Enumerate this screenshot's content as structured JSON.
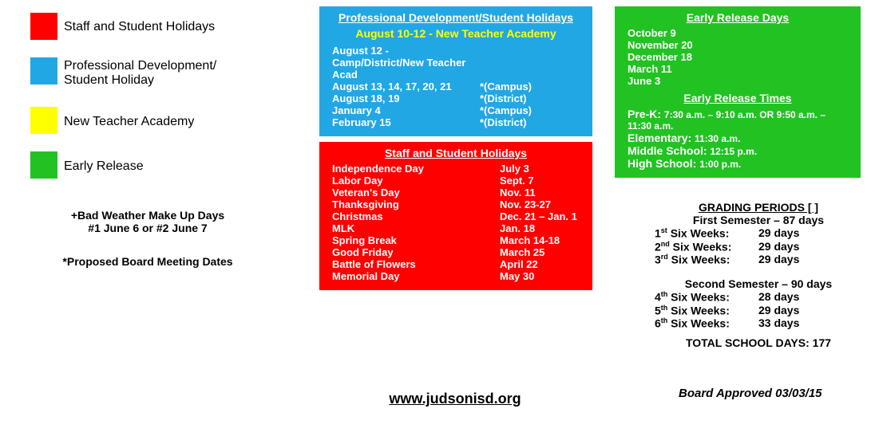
{
  "colors": {
    "red": "#ff0000",
    "blue": "#22a7e5",
    "yellow": "#ffff00",
    "green": "#22c222",
    "white": "#ffffff",
    "black": "#000000",
    "yellowText": "#ffff00"
  },
  "legend": {
    "staffStudent": {
      "label": "Staff and Student Holidays",
      "color": "#ff0000"
    },
    "profDev": {
      "label": "Professional Development/\nStudent Holiday",
      "color": "#22a7e5"
    },
    "newTeacher": {
      "label": "New Teacher Academy",
      "color": "#ffff00"
    },
    "earlyRelease": {
      "label": "Early Release",
      "color": "#22c222"
    }
  },
  "notes": {
    "badWeather1": "+Bad Weather Make Up Days",
    "badWeather2": "#1 June 6  or  #2 June 7",
    "proposed": "*Proposed Board Meeting Dates"
  },
  "profDevBox": {
    "title": "Professional Development/Student Holidays",
    "subtitle": "August 10-12 - New Teacher Academy",
    "bg": "#22a7e5",
    "text": "#ffffff",
    "subtitleColor": "#ffff00",
    "rows": [
      {
        "c1": "August 12  - Camp/District/New Teacher Acad",
        "c2": ""
      },
      {
        "c1": "August 13, 14, 17, 20, 21",
        "c2": "*(Campus)"
      },
      {
        "c1": "August 18, 19",
        "c2": "*(District)"
      },
      {
        "c1": "January 4",
        "c2": "*(Campus)"
      },
      {
        "c1": "February 15",
        "c2": "*(District)"
      }
    ]
  },
  "holidaysBox": {
    "title": "Staff and Student Holidays",
    "bg": "#ff0000",
    "text": "#ffffff",
    "rows": [
      {
        "name": "Independence Day",
        "date": "July 3"
      },
      {
        "name": "Labor Day",
        "date": "Sept. 7"
      },
      {
        "name": "Veteran's Day",
        "date": "Nov. 11"
      },
      {
        "name": "Thanksgiving",
        "date": "Nov. 23-27"
      },
      {
        "name": "Christmas",
        "date": "Dec. 21 – Jan. 1"
      },
      {
        "name": "MLK",
        "date": "Jan. 18"
      },
      {
        "name": "Spring Break",
        "date": "March 14-18"
      },
      {
        "name": "Good Friday",
        "date": "March 25"
      },
      {
        "name": "Battle of Flowers",
        "date": "April 22"
      },
      {
        "name": "Memorial Day",
        "date": "May 30"
      }
    ]
  },
  "earlyReleaseBox": {
    "titleDays": "Early Release Days",
    "titleTimes": "Early Release Times",
    "bg": "#22c222",
    "text": "#ffffff",
    "days": [
      "October 9",
      "November 20",
      "December 18",
      "March 11",
      "June 3"
    ],
    "times": [
      {
        "label": "Pre-K:",
        "value": "7:30 a.m. – 9:10 a.m. OR  9:50 a.m. – 11:30 a.m."
      },
      {
        "label": "Elementary:",
        "value": "11:30 a.m."
      },
      {
        "label": "Middle School:",
        "value": "12:15 p.m."
      },
      {
        "label": "High School:",
        "value": "1:00 p.m."
      }
    ]
  },
  "grading": {
    "title": "GRADING PERIODS [ ]",
    "firstLabel": "First Semester – 87 days",
    "secondLabel": "Second Semester – 90 days",
    "first": [
      {
        "ord": "1",
        "sup": "st",
        "label": "Six Weeks:",
        "days": "29 days"
      },
      {
        "ord": "2",
        "sup": "nd",
        "label": "Six Weeks:",
        "days": "29 days"
      },
      {
        "ord": "3",
        "sup": "rd",
        "label": "Six Weeks:",
        "days": "29 days"
      }
    ],
    "second": [
      {
        "ord": "4",
        "sup": "th",
        "label": "Six Weeks:",
        "days": "28 days"
      },
      {
        "ord": "5",
        "sup": "th",
        "label": "Six Weeks:",
        "days": "29 days"
      },
      {
        "ord": "6",
        "sup": "th",
        "label": "Six Weeks:",
        "days": "33 days"
      }
    ],
    "total": "TOTAL SCHOOL DAYS:  177"
  },
  "url": "www.judsonisd.org",
  "boardApproved": "Board Approved 03/03/15"
}
